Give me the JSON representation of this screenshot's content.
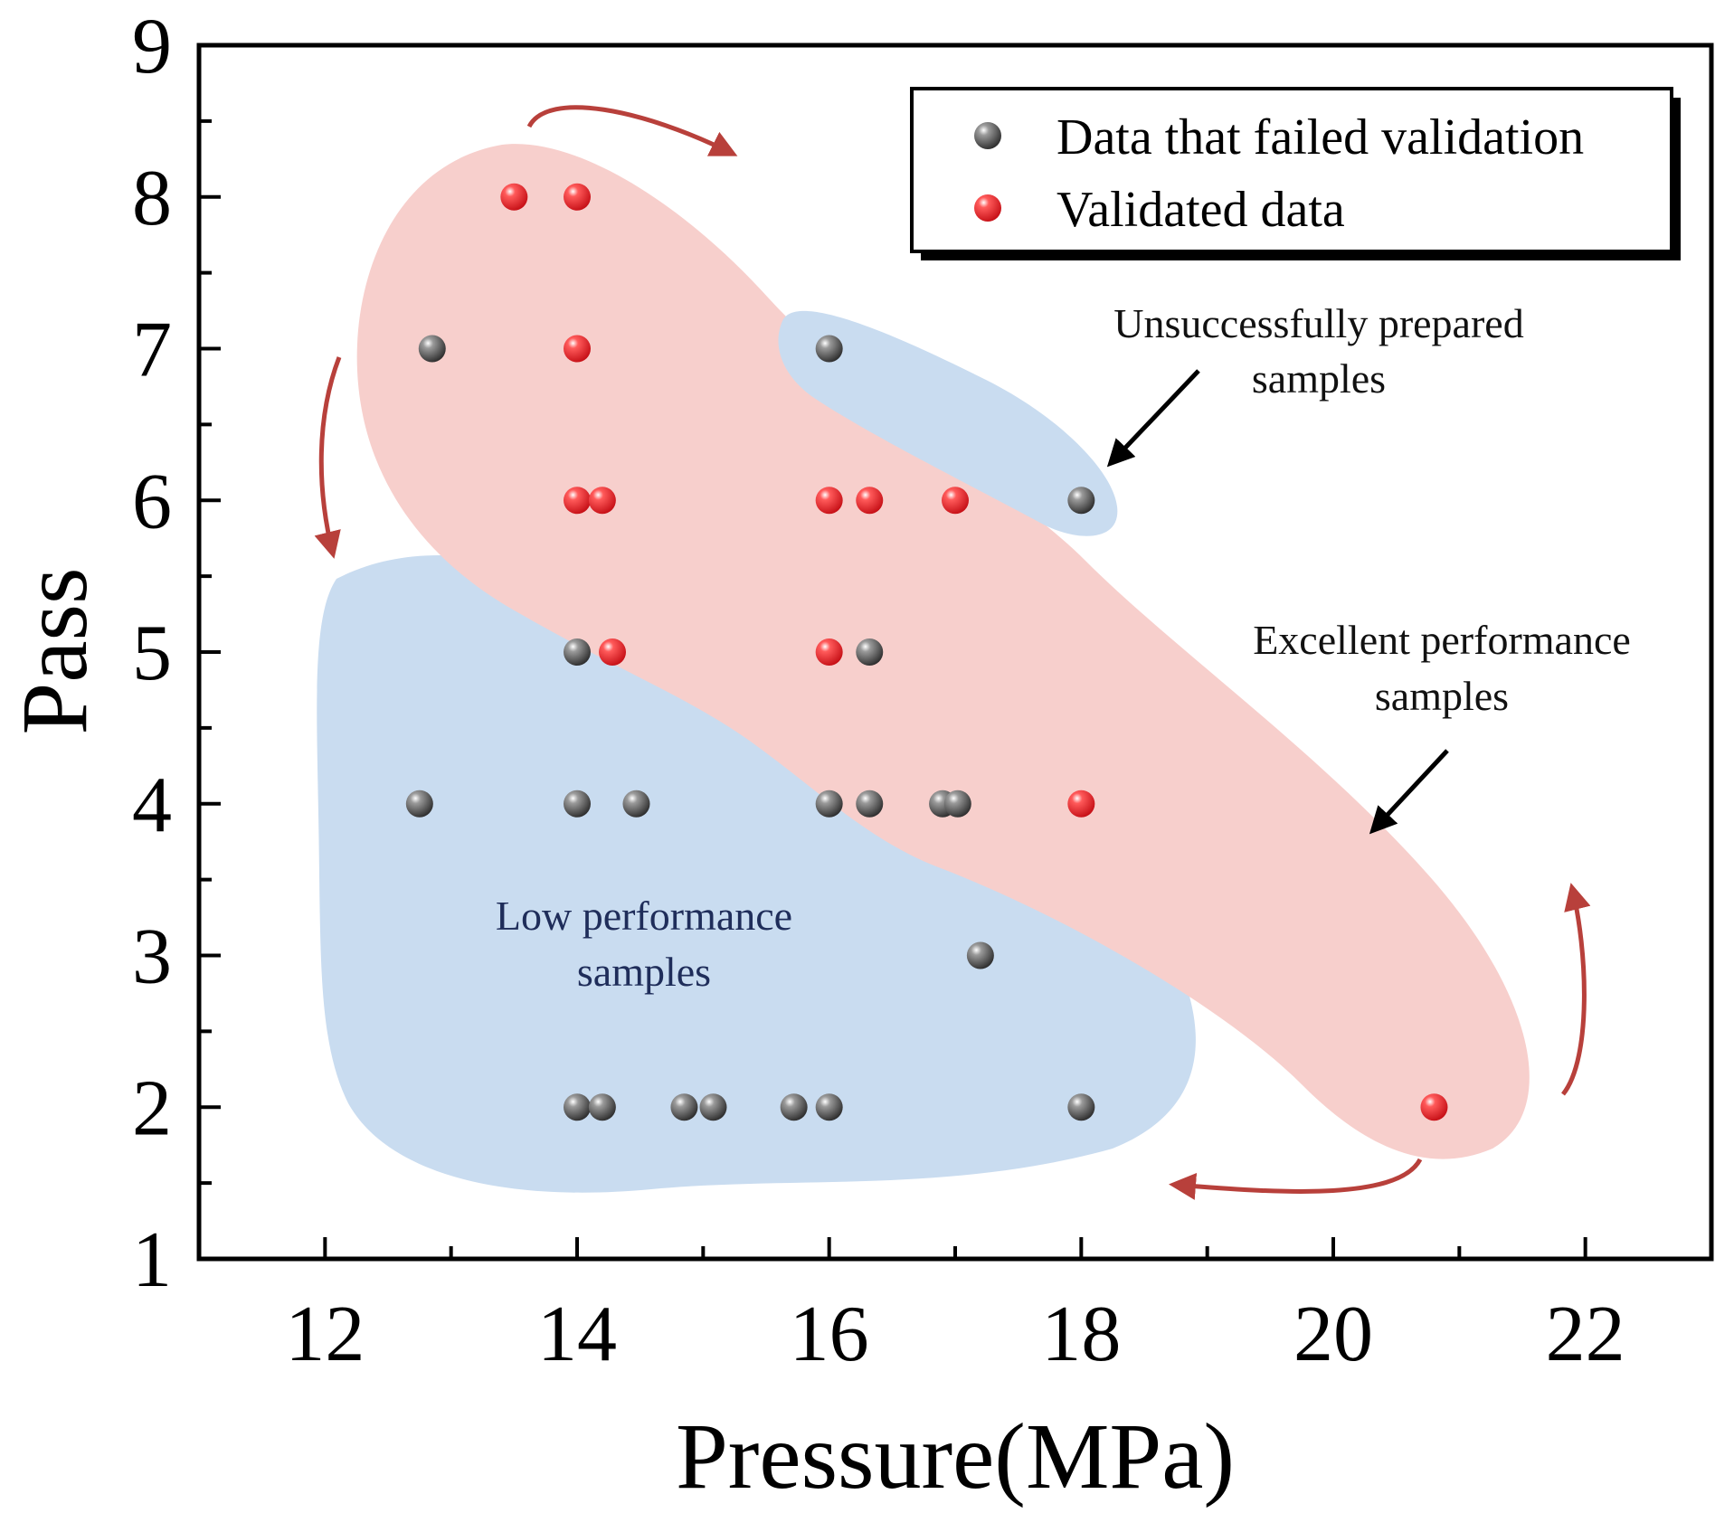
{
  "chart_data": {
    "type": "scatter",
    "title": "",
    "xlabel": "Pressure(MPa)",
    "ylabel": "Pass",
    "xlim": [
      11,
      23
    ],
    "ylim": [
      1,
      9
    ],
    "xticks": [
      12,
      14,
      16,
      18,
      20,
      22
    ],
    "yticks": [
      1,
      2,
      3,
      4,
      5,
      6,
      7,
      8,
      9
    ],
    "legend": {
      "position": "top-right"
    },
    "series": [
      {
        "name": "Data that failed validation",
        "color": "#3a3a3a",
        "points": [
          [
            12.85,
            7
          ],
          [
            16,
            7
          ],
          [
            18,
            6
          ],
          [
            14,
            5
          ],
          [
            16.32,
            5
          ],
          [
            12.75,
            4
          ],
          [
            14,
            4
          ],
          [
            14.47,
            4
          ],
          [
            16,
            4
          ],
          [
            16.32,
            4
          ],
          [
            16.9,
            4
          ],
          [
            17.02,
            4
          ],
          [
            17.2,
            3
          ],
          [
            14,
            2
          ],
          [
            14.2,
            2
          ],
          [
            14.85,
            2
          ],
          [
            15.08,
            2
          ],
          [
            15.72,
            2
          ],
          [
            16,
            2
          ],
          [
            18,
            2
          ]
        ]
      },
      {
        "name": "Validated data",
        "color": "#e8232a",
        "points": [
          [
            13.5,
            8
          ],
          [
            14,
            8
          ],
          [
            14,
            7
          ],
          [
            14,
            6
          ],
          [
            14.2,
            6
          ],
          [
            16,
            6
          ],
          [
            16.32,
            6
          ],
          [
            17,
            6
          ],
          [
            14.28,
            5
          ],
          [
            16,
            5
          ],
          [
            18,
            4
          ],
          [
            20.8,
            2
          ]
        ]
      }
    ],
    "annotations": [
      {
        "lines": [
          "Unsuccessfully prepared",
          "samples"
        ]
      },
      {
        "lines": [
          "Excellent performance",
          "samples"
        ]
      },
      {
        "lines": [
          "Low performance",
          "samples"
        ]
      }
    ],
    "regions": [
      {
        "name": "excellent-performance-region",
        "color": "#f7cfcc"
      },
      {
        "name": "unsuccessful-region",
        "color": "#c9dcf0"
      },
      {
        "name": "low-performance-region",
        "color": "#c9dcf0"
      }
    ]
  }
}
